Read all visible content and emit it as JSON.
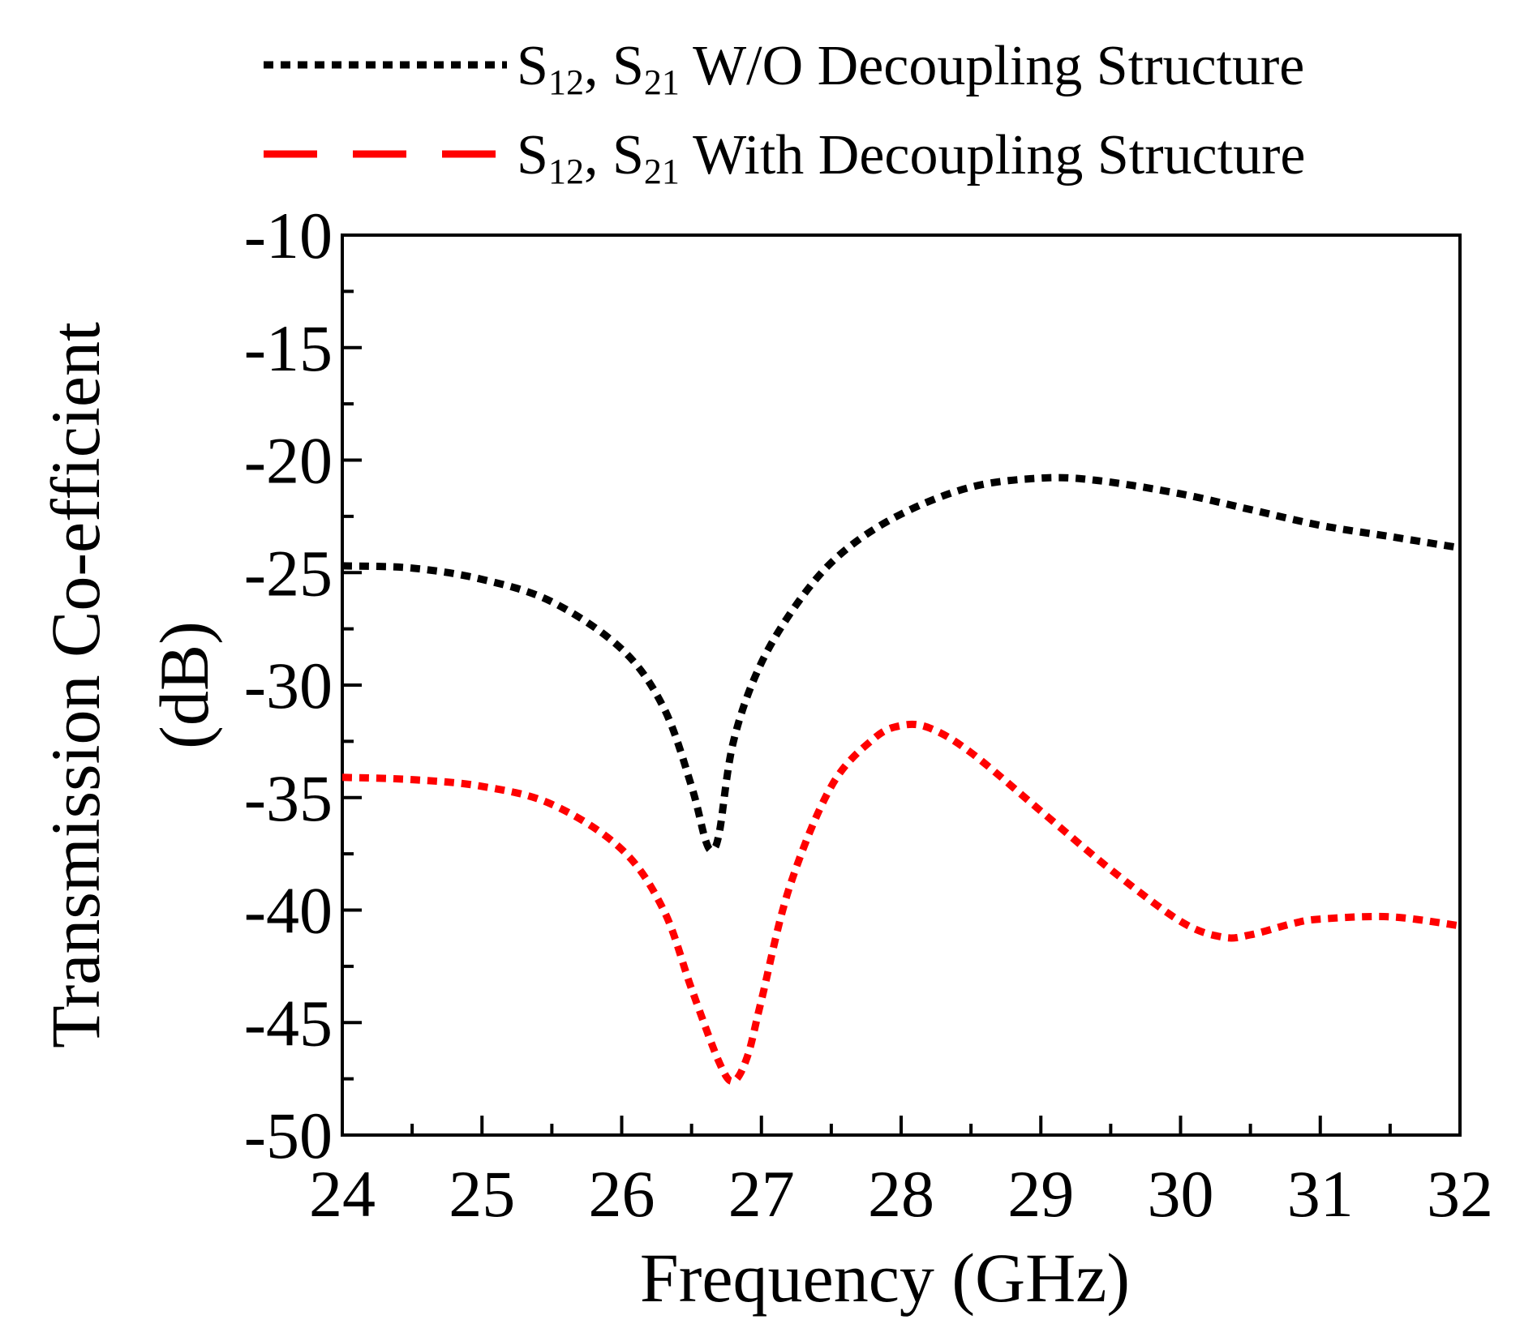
{
  "chart_data": {
    "type": "line",
    "xlabel": "Frequency (GHz)",
    "ylabel_line1": "Transmission Co-efficient",
    "ylabel_line2": "(dB)",
    "xlim": [
      24,
      32
    ],
    "ylim": [
      -50,
      -10
    ],
    "x_ticks": [
      24,
      25,
      26,
      27,
      28,
      29,
      30,
      31,
      32
    ],
    "y_ticks": [
      -10,
      -15,
      -20,
      -25,
      -30,
      -35,
      -40,
      -45,
      -50
    ],
    "x_minor_step": 0.5,
    "y_minor_step": 2.5,
    "grid": false,
    "legend_position": "top",
    "series": [
      {
        "name": "S12, S21 W/O Decoupling Structure",
        "legend": {
          "s": "S",
          "sub1": "12",
          "mid": ", S",
          "sub2": "21",
          "rest": " W/O Decoupling Structure"
        },
        "color": "#000000",
        "style": "dotted",
        "x": [
          24,
          24.5,
          25,
          25.5,
          26,
          26.3,
          26.5,
          26.6,
          26.65,
          26.7,
          26.8,
          27,
          27.3,
          27.6,
          28,
          28.5,
          29,
          29.4,
          30,
          30.5,
          31,
          31.5,
          32
        ],
        "y": [
          -24.7,
          -24.8,
          -25.3,
          -26.3,
          -28.4,
          -31,
          -34.5,
          -36.9,
          -37.3,
          -36.5,
          -32.5,
          -29,
          -26,
          -24,
          -22.4,
          -21.2,
          -20.8,
          -20.9,
          -21.5,
          -22.2,
          -22.9,
          -23.4,
          -23.9
        ]
      },
      {
        "name": "S12, S21 With Decoupling Structure",
        "legend": {
          "s": "S",
          "sub1": "12",
          "mid": ", S",
          "sub2": "21",
          "rest": " With Decoupling Structure"
        },
        "color": "#ff0000",
        "style": "dashed",
        "x": [
          24,
          24.5,
          25,
          25.5,
          26,
          26.3,
          26.5,
          26.7,
          26.8,
          26.9,
          27,
          27.2,
          27.5,
          27.8,
          28,
          28.2,
          28.5,
          29,
          29.5,
          30,
          30.3,
          30.5,
          30.8,
          31,
          31.5,
          32
        ],
        "y": [
          -34.1,
          -34.2,
          -34.5,
          -35.3,
          -37.3,
          -40,
          -43.5,
          -46.8,
          -47.6,
          -46.5,
          -44,
          -39,
          -34.5,
          -32.4,
          -31.8,
          -31.9,
          -33,
          -35.6,
          -38.2,
          -40.5,
          -41.2,
          -41.1,
          -40.6,
          -40.4,
          -40.3,
          -40.7
        ]
      }
    ]
  }
}
